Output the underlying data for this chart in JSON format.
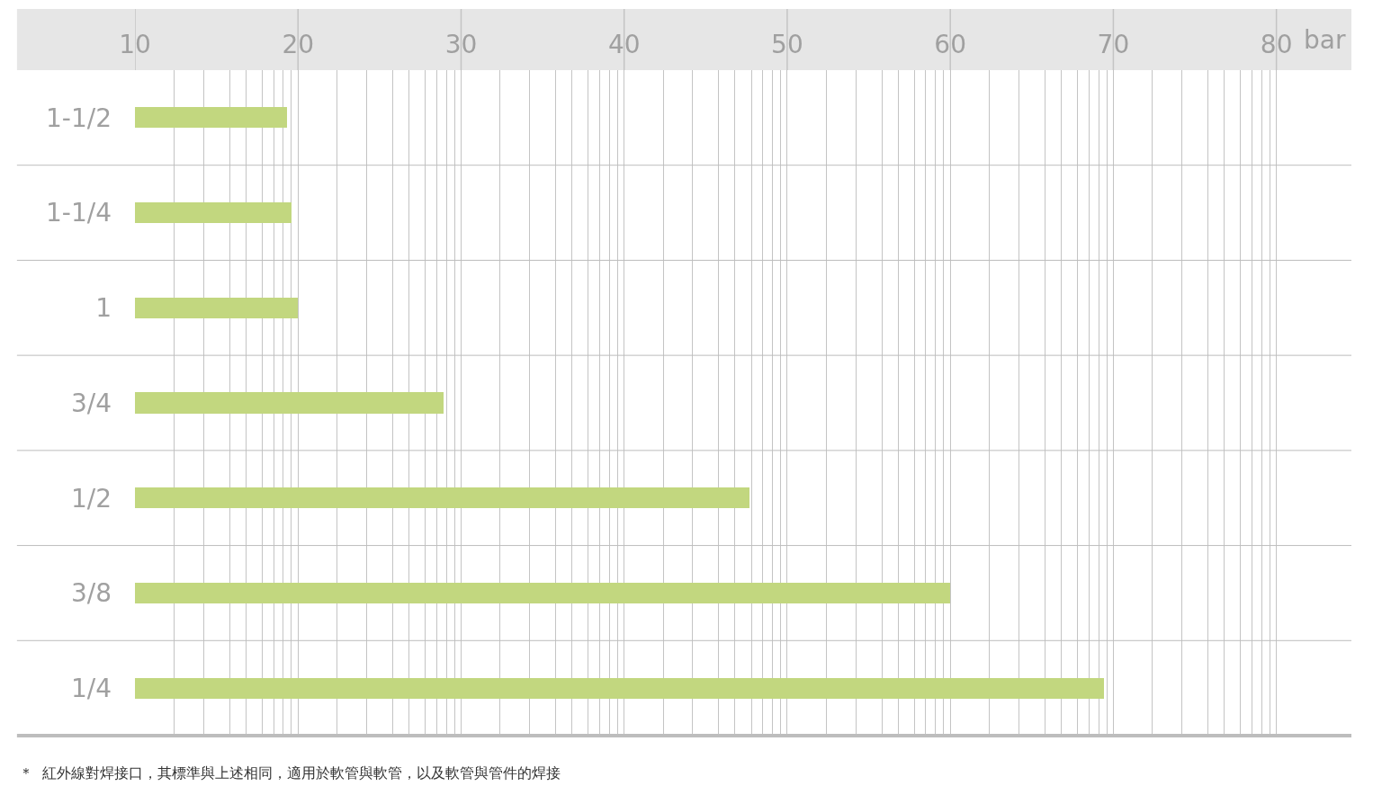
{
  "chart_data": {
    "type": "bar",
    "orientation": "horizontal",
    "xlabel": "bar",
    "categories": [
      "1-1/2",
      "1-1/4",
      "1",
      "3/4",
      "1/2",
      "3/8",
      "1/4"
    ],
    "values": [
      19.3,
      19.6,
      20.0,
      28.9,
      47.7,
      60.0,
      69.4
    ],
    "color": "#c2d77f",
    "xlim": [
      10,
      84.6
    ],
    "xticks": [
      10,
      {
        "value": 12.4,
        "label": null
      },
      {
        "value": 14.2,
        "label": null
      },
      {
        "value": 15.8,
        "label": null
      },
      {
        "value": 16.8,
        "label": null
      },
      {
        "value": 17.8,
        "label": null
      },
      {
        "value": 18.5,
        "label": null
      },
      {
        "value": 19.1,
        "label": null
      },
      {
        "value": 19.6,
        "label": null
      },
      20,
      {
        "value": 22.4,
        "label": null
      },
      {
        "value": 24.2,
        "label": null
      },
      {
        "value": 25.8,
        "label": null
      },
      {
        "value": 26.8,
        "label": null
      },
      {
        "value": 27.8,
        "label": null
      },
      {
        "value": 28.5,
        "label": null
      },
      {
        "value": 29.1,
        "label": null
      },
      {
        "value": 29.6,
        "label": null
      },
      30,
      {
        "value": 32.4,
        "label": null
      },
      {
        "value": 34.2,
        "label": null
      },
      {
        "value": 35.8,
        "label": null
      },
      {
        "value": 36.8,
        "label": null
      },
      {
        "value": 37.8,
        "label": null
      },
      {
        "value": 38.5,
        "label": null
      },
      {
        "value": 39.1,
        "label": null
      },
      {
        "value": 39.6,
        "label": null
      },
      40,
      {
        "value": 42.4,
        "label": null
      },
      {
        "value": 44.2,
        "label": null
      },
      {
        "value": 45.8,
        "label": null
      },
      {
        "value": 46.8,
        "label": null
      },
      {
        "value": 47.8,
        "label": null
      },
      {
        "value": 48.5,
        "label": null
      },
      {
        "value": 49.1,
        "label": null
      },
      {
        "value": 49.6,
        "label": null
      },
      50,
      {
        "value": 52.4,
        "label": null
      },
      {
        "value": 54.2,
        "label": null
      },
      {
        "value": 55.8,
        "label": null
      },
      {
        "value": 56.8,
        "label": null
      },
      {
        "value": 57.8,
        "label": null
      },
      {
        "value": 58.5,
        "label": null
      },
      {
        "value": 59.1,
        "label": null
      },
      {
        "value": 59.6,
        "label": null
      },
      60,
      {
        "value": 62.4,
        "label": null
      },
      {
        "value": 64.2,
        "label": null
      },
      {
        "value": 65.8,
        "label": null
      },
      {
        "value": 66.8,
        "label": null
      },
      {
        "value": 67.8,
        "label": null
      },
      {
        "value": 68.5,
        "label": null
      },
      {
        "value": 69.1,
        "label": null
      },
      {
        "value": 69.6,
        "label": null
      },
      70,
      {
        "value": 72.4,
        "label": null
      },
      {
        "value": 74.2,
        "label": null
      },
      {
        "value": 75.8,
        "label": null
      },
      {
        "value": 76.8,
        "label": null
      },
      {
        "value": 77.8,
        "label": null
      },
      {
        "value": 78.5,
        "label": null
      },
      {
        "value": 79.1,
        "label": null
      },
      {
        "value": 79.6,
        "label": null
      },
      80
    ],
    "grid": "x",
    "annotations": [
      "＊  紅外線對焊接口，其標準與上述相同，適用於軟管與軟管，以及軟管與管件的焊接"
    ]
  }
}
